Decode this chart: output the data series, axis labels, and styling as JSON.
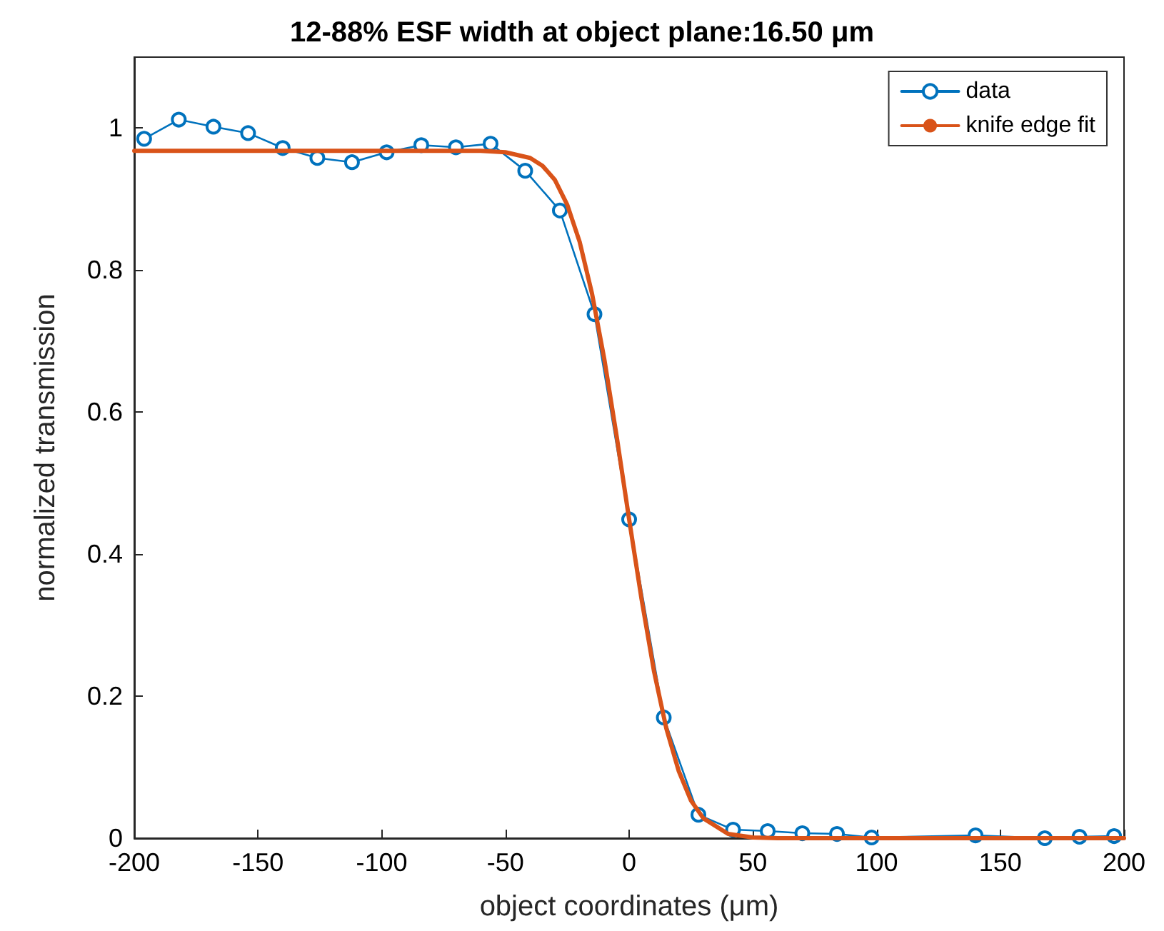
{
  "chart_data": {
    "type": "line",
    "title": "12-88% ESF width at object plane:16.50 μm",
    "xlabel": "object coordinates (μm)",
    "ylabel": "normalized transmission",
    "series": [
      {
        "name": "data",
        "color": "#0072bd",
        "marker": "circle",
        "x": [
          -196,
          -182,
          -168,
          -154,
          -140,
          -126,
          -112,
          -98,
          -84,
          -70,
          -56,
          -42,
          -28,
          -14,
          0,
          14,
          28,
          42,
          56,
          70,
          84,
          98,
          140,
          168,
          182,
          196
        ],
        "values": [
          0.985,
          1.012,
          1.002,
          0.993,
          0.972,
          0.958,
          0.952,
          0.966,
          0.976,
          0.973,
          0.978,
          0.94,
          0.884,
          0.738,
          0.449,
          0.17,
          0.033,
          0.012,
          0.01,
          0.007,
          0.006,
          0.001,
          0.004,
          0,
          0.002,
          0.003
        ]
      },
      {
        "name": "knife edge fit",
        "color": "#d95319",
        "marker": "none",
        "x": [
          -200,
          -80,
          -60,
          -50,
          -40,
          -35,
          -30,
          -25,
          -20,
          -15,
          -10,
          -5,
          0,
          5,
          10,
          15,
          20,
          25,
          30,
          40,
          50,
          60,
          200
        ],
        "values": [
          0.968,
          0.968,
          0.968,
          0.966,
          0.958,
          0.947,
          0.927,
          0.892,
          0.84,
          0.767,
          0.674,
          0.565,
          0.449,
          0.337,
          0.236,
          0.155,
          0.095,
          0.053,
          0.028,
          0.006,
          0.001,
          0,
          0
        ]
      }
    ],
    "xlim": [
      -200,
      200
    ],
    "xticks": [
      -200,
      -150,
      -100,
      -50,
      0,
      50,
      100,
      150,
      200
    ],
    "ylim": [
      0,
      1.1
    ],
    "yticks": [
      0,
      0.2,
      0.4,
      0.6,
      0.8,
      1
    ],
    "grid": false,
    "legend": "top right",
    "line_style": "solid"
  }
}
